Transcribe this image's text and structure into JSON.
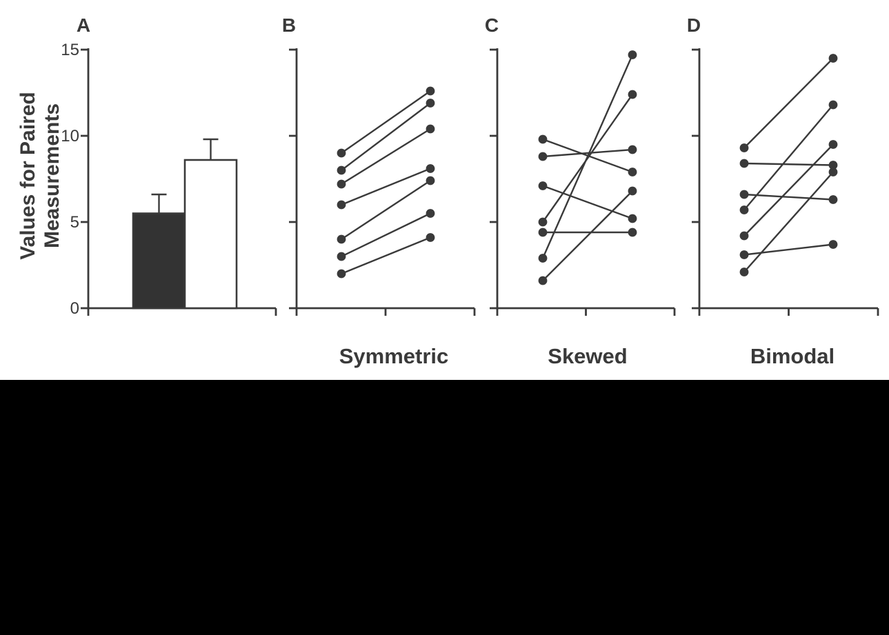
{
  "colors": {
    "ink": "#3a3a3a",
    "bar_fill_dark": "#333333",
    "bar_fill_open": "#ffffff",
    "background": "#ffffff",
    "bottom_band": "#000000"
  },
  "y_axis": {
    "label_lines": [
      "Values for Paired",
      "Measurements"
    ],
    "range": [
      0,
      15
    ],
    "ticks": [
      0,
      5,
      10,
      15
    ]
  },
  "chart_data": [
    {
      "panel_label": "A",
      "type": "bar",
      "categories": [
        "filled bar",
        "open bar"
      ],
      "values": [
        5.5,
        8.6
      ],
      "error_up": [
        1.1,
        1.2
      ],
      "bar_styles": [
        "dark",
        "white"
      ],
      "xlabel": "",
      "ylabel": "Values for Paired Measurements",
      "ylim": [
        0,
        15
      ],
      "yticks": [
        0,
        5,
        10,
        15
      ],
      "grid": false
    },
    {
      "panel_label": "B",
      "type": "paired-line",
      "xlabel": "Symmetric",
      "ylim": [
        0,
        15
      ],
      "x_positions": [
        "first",
        "second"
      ],
      "pairs": [
        [
          9.0,
          12.6
        ],
        [
          8.0,
          11.9
        ],
        [
          7.2,
          10.4
        ],
        [
          6.0,
          8.1
        ],
        [
          4.0,
          7.4
        ],
        [
          3.0,
          5.5
        ],
        [
          2.0,
          4.1
        ]
      ]
    },
    {
      "panel_label": "C",
      "type": "paired-line",
      "xlabel": "Skewed",
      "ylim": [
        0,
        15
      ],
      "x_positions": [
        "first",
        "second"
      ],
      "pairs": [
        [
          9.8,
          7.9
        ],
        [
          8.8,
          9.2
        ],
        [
          7.1,
          5.2
        ],
        [
          5.0,
          12.4
        ],
        [
          4.4,
          4.4
        ],
        [
          2.9,
          14.7
        ],
        [
          1.6,
          6.8
        ]
      ]
    },
    {
      "panel_label": "D",
      "type": "paired-line",
      "xlabel": "Bimodal",
      "ylim": [
        0,
        15
      ],
      "x_positions": [
        "first",
        "second"
      ],
      "pairs": [
        [
          9.3,
          14.5
        ],
        [
          8.4,
          8.3
        ],
        [
          6.6,
          6.3
        ],
        [
          5.7,
          11.8
        ],
        [
          4.2,
          9.5
        ],
        [
          3.1,
          3.7
        ],
        [
          2.1,
          7.9
        ]
      ]
    }
  ]
}
